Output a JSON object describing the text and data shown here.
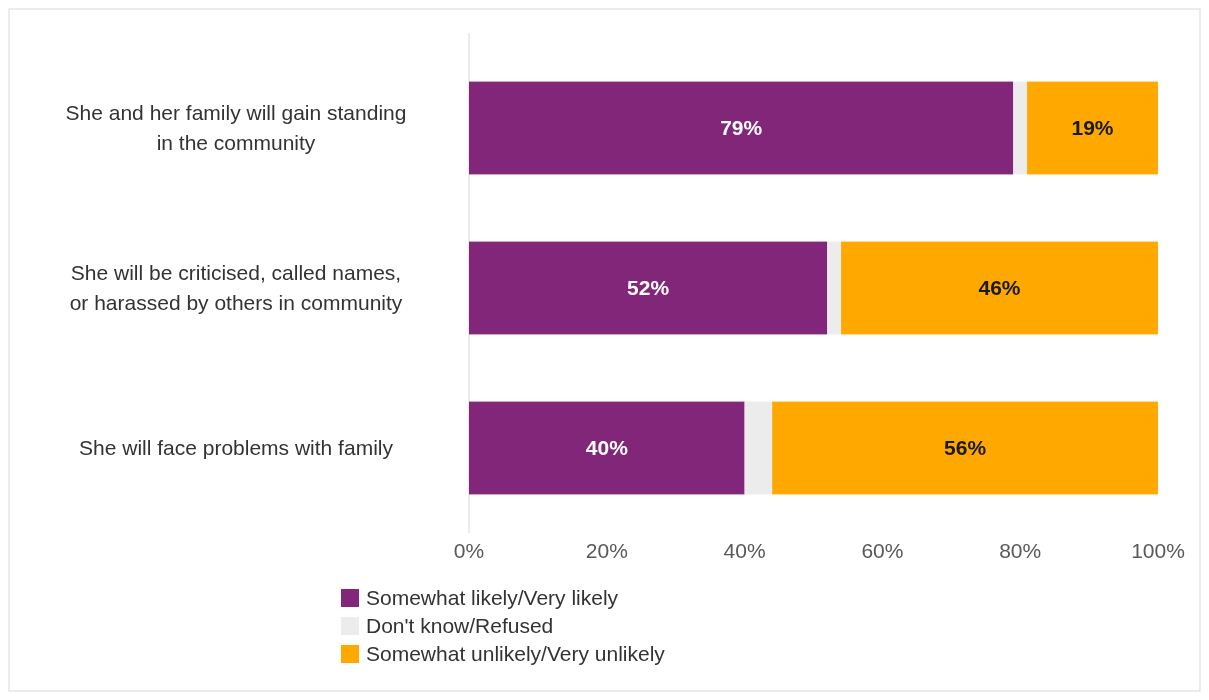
{
  "chart_data": {
    "type": "bar",
    "orientation": "horizontal",
    "stacked": true,
    "categories": [
      "She and her family will gain standing in the community",
      "She will be criticised, called names, or harassed by others in community",
      "She will face problems with family"
    ],
    "series": [
      {
        "name": "Somewhat likely/Very likely",
        "color": "#82267a",
        "values": [
          79,
          52,
          40
        ],
        "value_labels": [
          "79%",
          "52%",
          "40%"
        ]
      },
      {
        "name": "Don't know/Refused",
        "color": "#ececec",
        "values": [
          2,
          2,
          4
        ]
      },
      {
        "name": "Somewhat unlikely/Very unlikely",
        "color": "#ffa800",
        "values": [
          19,
          46,
          56
        ],
        "value_labels": [
          "19%",
          "46%",
          "56%"
        ]
      }
    ],
    "xlim": [
      0,
      100
    ],
    "xticks": [
      {
        "value": 0,
        "label": "0%"
      },
      {
        "value": 20,
        "label": "20%"
      },
      {
        "value": 40,
        "label": "40%"
      },
      {
        "value": 60,
        "label": "60%"
      },
      {
        "value": 80,
        "label": "80%"
      },
      {
        "value": 100,
        "label": "100%"
      }
    ],
    "grid": false,
    "legend": "bottom"
  }
}
